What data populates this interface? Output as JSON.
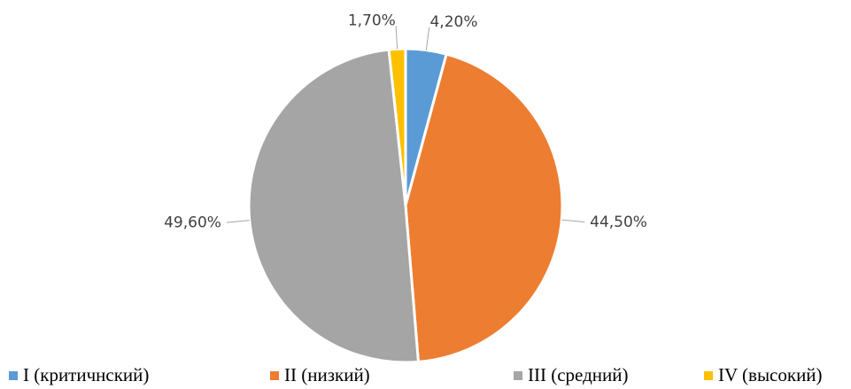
{
  "chart_data": {
    "type": "pie",
    "categories": [
      "I (критичнский)",
      "II (низкий)",
      "III (средний)",
      "IV (высокий)"
    ],
    "values": [
      4.2,
      44.5,
      49.6,
      1.7
    ],
    "value_labels": [
      "4,20%",
      "44,50%",
      "49,60%",
      "1,70%"
    ],
    "colors": [
      "#5b9bd5",
      "#ed7d31",
      "#a5a5a5",
      "#ffc000"
    ],
    "legend": "bottom"
  }
}
